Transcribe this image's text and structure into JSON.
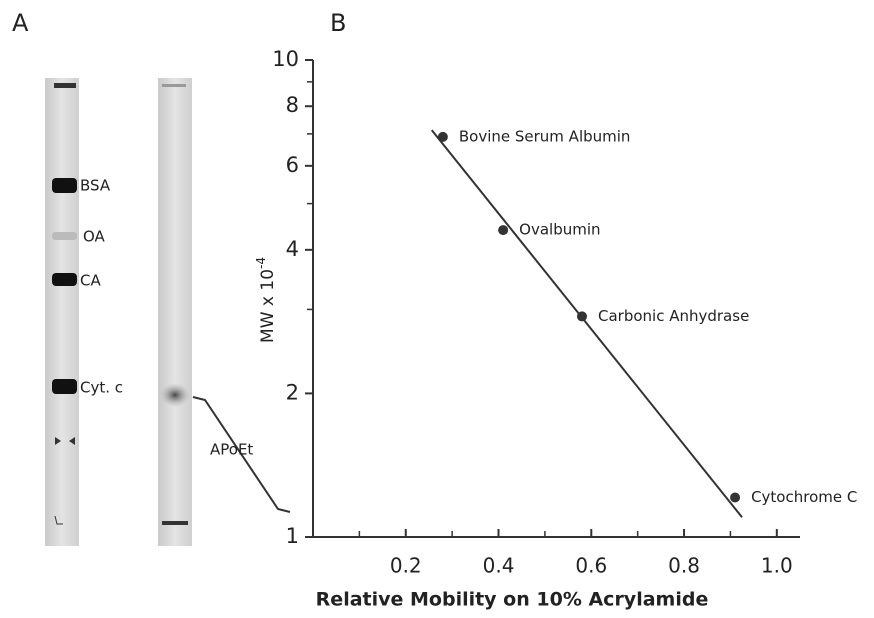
{
  "panel_labels": {
    "a": "A",
    "b": "B"
  },
  "gel": {
    "lane_labels": [
      "BSA",
      "OA",
      "CA",
      "Cyt. c"
    ],
    "annotation": "APoEt"
  },
  "chart_data": {
    "type": "scatter",
    "x": [
      0.28,
      0.41,
      0.58,
      0.91
    ],
    "values": [
      6.9,
      4.4,
      2.9,
      1.21
    ],
    "point_labels": [
      "Bovine Serum Albumin",
      "Ovalbumin",
      "Carbonic Anhydrase",
      "Cytochrome C"
    ],
    "color": "#333333",
    "fit_line": {
      "x": [
        0.256,
        0.925
      ],
      "y": [
        7.13,
        1.1
      ]
    },
    "xlabel": "Relative Mobility on 10% Acrylamide",
    "ylabel": "MW x 10",
    "ylabel_exponent": "-4",
    "xlim": [
      0,
      1.05
    ],
    "ylim": [
      1,
      10
    ],
    "log_y": true,
    "xticks": [
      0.2,
      0.4,
      0.6,
      0.8,
      {
        "value": 1.0,
        "label": "1.0"
      }
    ],
    "minor_xticks": [
      0.1,
      0.3,
      0.5,
      0.7,
      0.9
    ],
    "yticks": [
      1,
      2,
      4,
      6,
      8,
      10
    ],
    "minor_yticks": [
      3,
      5,
      7,
      9
    ]
  }
}
